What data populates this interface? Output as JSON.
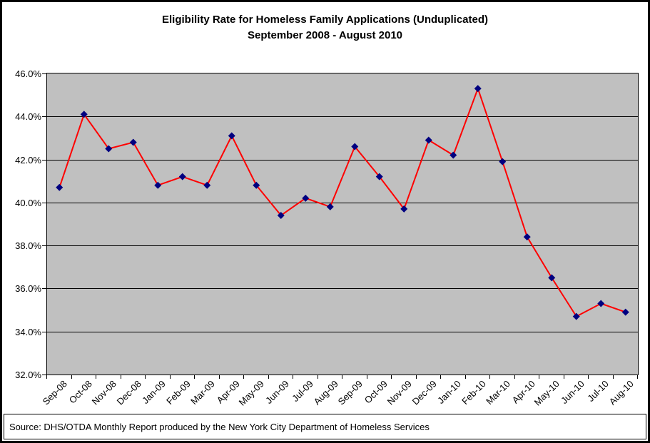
{
  "chart_data": {
    "type": "line",
    "title": "Eligibility Rate for Homeless Family Applications (Unduplicated)",
    "subtitle": "September 2008 - August 2010",
    "categories": [
      "Sep-08",
      "Oct-08",
      "Nov-08",
      "Dec-08",
      "Jan-09",
      "Feb-09",
      "Mar-09",
      "Apr-09",
      "May-09",
      "Jun-09",
      "Jul-09",
      "Aug-09",
      "Sep-09",
      "Oct-09",
      "Nov-09",
      "Dec-09",
      "Jan-10",
      "Feb-10",
      "Mar-10",
      "Apr-10",
      "May-10",
      "Jun-10",
      "Jul-10",
      "Aug-10"
    ],
    "values": [
      40.7,
      44.1,
      42.5,
      42.8,
      40.8,
      41.2,
      40.8,
      43.1,
      40.8,
      39.4,
      40.2,
      39.8,
      42.6,
      41.2,
      39.7,
      42.9,
      42.2,
      45.3,
      41.9,
      38.4,
      36.5,
      34.7,
      35.3,
      34.9
    ],
    "unit": "%",
    "ylim": [
      32,
      46
    ],
    "y_tick_step": 2,
    "y_tick_labels": [
      "46.0%",
      "44.0%",
      "42.0%",
      "40.0%",
      "38.0%",
      "36.0%",
      "34.0%",
      "32.0%"
    ],
    "grid": true,
    "legend": "none",
    "xlabel": "",
    "ylabel": "",
    "colors": {
      "line": "#FF0000",
      "marker": "#000080",
      "plot_bg": "#C0C0C0",
      "grid": "#000000",
      "text": "#000000"
    },
    "source": "Source: DHS/OTDA Monthly Report produced by the New York City Department of Homeless Services"
  }
}
